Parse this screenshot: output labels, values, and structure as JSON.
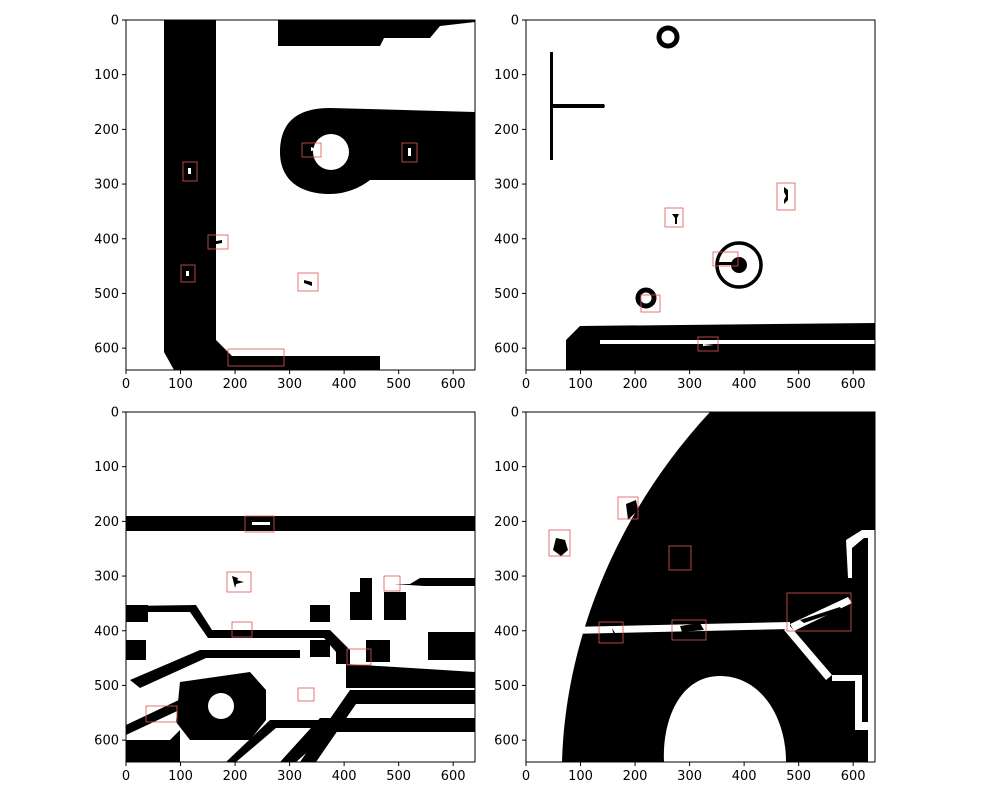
{
  "panels": [
    {
      "id": "top-left",
      "x_ticks": [
        "0",
        "100",
        "200",
        "300",
        "400",
        "500",
        "600"
      ],
      "y_ticks": [
        "0",
        "100",
        "200",
        "300",
        "400",
        "500",
        "600"
      ],
      "xlim": [
        0,
        640
      ],
      "ylim": [
        640,
        0
      ],
      "defect_box_count": 8
    },
    {
      "id": "top-right",
      "x_ticks": [
        "0",
        "100",
        "200",
        "300",
        "400",
        "500",
        "600"
      ],
      "y_ticks": [
        "0",
        "100",
        "200",
        "300",
        "400",
        "500",
        "600"
      ],
      "xlim": [
        0,
        640
      ],
      "ylim": [
        640,
        0
      ],
      "defect_box_count": 5
    },
    {
      "id": "bottom-left",
      "x_ticks": [
        "0",
        "100",
        "200",
        "300",
        "400",
        "500",
        "600"
      ],
      "y_ticks": [
        "0",
        "100",
        "200",
        "300",
        "400",
        "500",
        "600"
      ],
      "xlim": [
        0,
        640
      ],
      "ylim": [
        640,
        0
      ],
      "defect_box_count": 7
    },
    {
      "id": "bottom-right",
      "x_ticks": [
        "0",
        "100",
        "200",
        "300",
        "400",
        "500",
        "600"
      ],
      "y_ticks": [
        "0",
        "100",
        "200",
        "300",
        "400",
        "500",
        "600"
      ],
      "xlim": [
        0,
        640
      ],
      "ylim": [
        640,
        0
      ],
      "defect_box_count": 6
    }
  ],
  "colors": {
    "trace": "#000000",
    "background": "#ffffff",
    "defect_box": "#e05555"
  }
}
